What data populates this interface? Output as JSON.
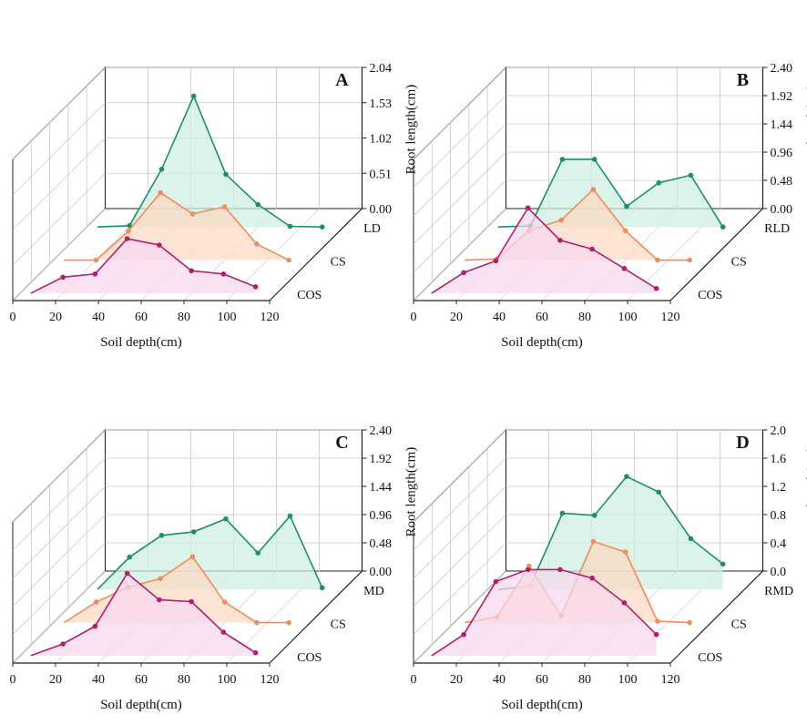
{
  "chart_data": [
    {
      "type": "line",
      "subtype": "3d-stacked-area",
      "panel": "A",
      "xlabel": "Soil depth(cm)",
      "zlabel": "Root length(cm)",
      "x_ticks": [
        "0",
        "20",
        "40",
        "60",
        "80",
        "100",
        "120"
      ],
      "z_ticks": [
        "0.00",
        "0.51",
        "1.02",
        "1.53",
        "2.04"
      ],
      "zlim": [
        0,
        2.2
      ],
      "x": [
        5,
        20,
        35,
        50,
        65,
        80,
        95,
        110
      ],
      "series": [
        {
          "name": "LD",
          "color": "#1e8f6a",
          "fill": "#cdeee0",
          "values": [
            0.0,
            0.02,
            0.9,
            2.04,
            0.82,
            0.35,
            0.01,
            0.0
          ]
        },
        {
          "name": "CS",
          "color": "#f28c5a",
          "fill": "#fcd9c4",
          "values": [
            0.0,
            0.0,
            0.45,
            1.05,
            0.72,
            0.83,
            0.25,
            0.0
          ]
        },
        {
          "name": "COS",
          "color": "#b21e6e",
          "fill": "#f6d8ef",
          "values": [
            0.0,
            0.25,
            0.3,
            0.85,
            0.75,
            0.35,
            0.3,
            0.1
          ]
        }
      ]
    },
    {
      "type": "line",
      "subtype": "3d-stacked-area",
      "panel": "B",
      "xlabel": "Soil depth(cm)",
      "zlabel": "Root length(cm)",
      "x_ticks": [
        "0",
        "20",
        "40",
        "60",
        "80",
        "100",
        "120"
      ],
      "z_ticks": [
        "0.00",
        "0.48",
        "0.96",
        "1.44",
        "1.92",
        "2.40"
      ],
      "zlim": [
        0,
        2.4
      ],
      "x": [
        5,
        20,
        35,
        50,
        65,
        80,
        95,
        110
      ],
      "series": [
        {
          "name": "RLD",
          "color": "#1e8f6a",
          "fill": "#cdeee0",
          "values": [
            0.0,
            0.02,
            1.15,
            1.15,
            0.35,
            0.75,
            0.88,
            0.0
          ]
        },
        {
          "name": "CS",
          "color": "#f28c5a",
          "fill": "#fcd9c4",
          "values": [
            0.0,
            0.02,
            0.5,
            0.68,
            1.2,
            0.5,
            0.0,
            0.0
          ]
        },
        {
          "name": "COS",
          "color": "#b21e6e",
          "fill": "#f6d8ef",
          "values": [
            0.0,
            0.35,
            0.55,
            1.45,
            0.9,
            0.75,
            0.42,
            0.08
          ]
        }
      ]
    },
    {
      "type": "line",
      "subtype": "3d-stacked-area",
      "panel": "C",
      "xlabel": "Soil depth(cm)",
      "zlabel": "Root length(cm)",
      "x_ticks": [
        "0",
        "20",
        "40",
        "60",
        "80",
        "100",
        "120"
      ],
      "z_ticks": [
        "0.00",
        "0.48",
        "0.96",
        "1.44",
        "1.92",
        "2.40"
      ],
      "zlim": [
        0,
        2.4
      ],
      "x": [
        5,
        20,
        35,
        50,
        65,
        80,
        95,
        110
      ],
      "series": [
        {
          "name": "MD",
          "color": "#1e8f6a",
          "fill": "#cdeee0",
          "values": [
            0.0,
            0.55,
            0.92,
            0.98,
            1.2,
            0.62,
            1.25,
            0.03
          ]
        },
        {
          "name": "CS",
          "color": "#f28c5a",
          "fill": "#fcd9c4",
          "values": [
            0.0,
            0.35,
            0.6,
            0.75,
            1.12,
            0.35,
            0.0,
            0.0
          ]
        },
        {
          "name": "COS",
          "color": "#b21e6e",
          "fill": "#f6d8ef",
          "values": [
            0.0,
            0.2,
            0.5,
            1.4,
            0.95,
            0.92,
            0.4,
            0.05
          ]
        }
      ]
    },
    {
      "type": "line",
      "subtype": "3d-stacked-area",
      "panel": "D",
      "xlabel": "Soil depth(cm)",
      "zlabel": "Root length(cm)",
      "x_ticks": [
        "0",
        "20",
        "40",
        "60",
        "80",
        "100",
        "120"
      ],
      "z_ticks": [
        "0.0",
        "0.4",
        "0.8",
        "1.2",
        "1.6",
        "2.0"
      ],
      "zlim": [
        0,
        2.0
      ],
      "x": [
        5,
        20,
        35,
        50,
        65,
        80,
        95,
        110
      ],
      "series": [
        {
          "name": "RMD",
          "color": "#1e8f6a",
          "fill": "#cdeee0",
          "values": [
            0.0,
            0.05,
            1.08,
            1.05,
            1.6,
            1.38,
            0.72,
            0.36
          ]
        },
        {
          "name": "CS",
          "color": "#f28c5a",
          "fill": "#fcd9c4",
          "values": [
            0.0,
            0.08,
            0.8,
            0.1,
            1.15,
            1.0,
            0.02,
            0.0
          ]
        },
        {
          "name": "COS",
          "color": "#b21e6e",
          "fill": "#f6d8ef",
          "values": [
            0.0,
            0.3,
            1.05,
            1.22,
            1.22,
            1.1,
            0.75,
            0.3
          ]
        }
      ]
    }
  ]
}
